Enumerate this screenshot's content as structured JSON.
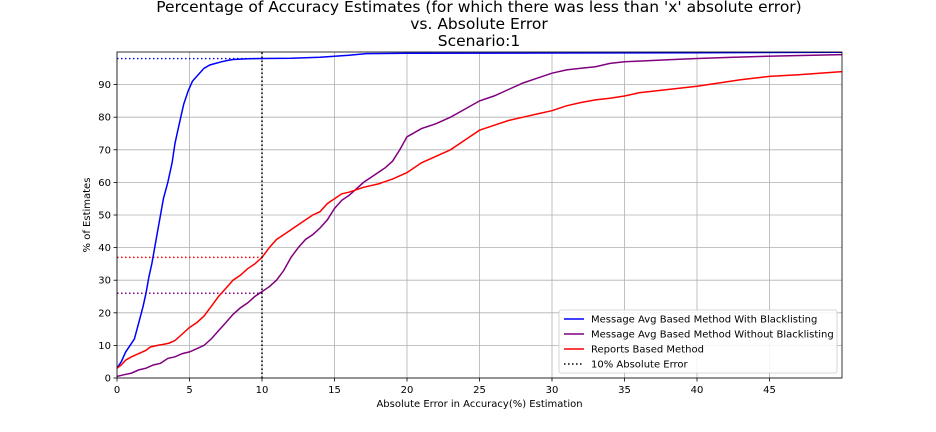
{
  "chart_data": {
    "type": "line",
    "title_lines": [
      "Percentage of Accuracy Estimates (for which there was less than 'x' absolute error)",
      "vs. Absolute Error",
      "Scenario:1"
    ],
    "xlabel": "Absolute Error in Accuracy(%) Estimation",
    "ylabel": "% of Estimates",
    "xlim": [
      0,
      50
    ],
    "ylim": [
      0,
      100
    ],
    "xticks": [
      0,
      5,
      10,
      15,
      20,
      25,
      30,
      35,
      40,
      45
    ],
    "yticks": [
      0,
      10,
      20,
      30,
      40,
      50,
      60,
      70,
      80,
      90
    ],
    "grid": true,
    "legend_position": "lower-right",
    "series": [
      {
        "name": "Message Avg Based Method With Blacklisting",
        "color": "#0000ff",
        "style": "solid",
        "x": [
          0,
          0.3,
          0.6,
          0.9,
          1.2,
          1.5,
          1.8,
          2.0,
          2.2,
          2.4,
          2.6,
          2.8,
          3.0,
          3.2,
          3.5,
          3.8,
          4.0,
          4.3,
          4.6,
          4.9,
          5.2,
          5.6,
          6.0,
          6.4,
          6.8,
          7.2,
          7.6,
          8.0,
          9.0,
          10.0,
          12.0,
          14.0,
          16.0,
          17.2,
          20,
          30,
          40,
          50
        ],
        "y": [
          3,
          5,
          8,
          10,
          12,
          17,
          22,
          26,
          31,
          35,
          40,
          45,
          50,
          55,
          60,
          66,
          72,
          78,
          84,
          88,
          91,
          93,
          95,
          96,
          96.5,
          97,
          97.4,
          97.7,
          97.9,
          98,
          98.1,
          98.4,
          99,
          99.5,
          99.6,
          99.7,
          99.8,
          99.9
        ]
      },
      {
        "name": "Message Avg Based Method Without Blacklisting",
        "color": "#800080",
        "style": "solid",
        "x": [
          0,
          0.5,
          1.0,
          1.5,
          2.0,
          2.5,
          3.0,
          3.5,
          4.0,
          4.5,
          5.0,
          5.5,
          6.0,
          6.5,
          7.0,
          7.5,
          8.0,
          8.5,
          9.0,
          9.5,
          10.0,
          10.5,
          11.0,
          11.5,
          12.0,
          12.5,
          13.0,
          13.5,
          14.0,
          14.5,
          15.0,
          15.5,
          16.0,
          16.5,
          17.0,
          17.5,
          18.0,
          18.5,
          19.0,
          19.5,
          20.0,
          21.0,
          22.0,
          23.0,
          24.0,
          25.0,
          26.0,
          27.0,
          28.0,
          29.0,
          30.0,
          31.0,
          32.0,
          33.0,
          34.0,
          35.0,
          36.0,
          38.0,
          40.0,
          42.0,
          44.0,
          46.0,
          48.0,
          50.0
        ],
        "y": [
          0.5,
          1,
          1.5,
          2.5,
          3,
          4,
          4.5,
          6,
          6.5,
          7.5,
          8,
          9,
          10,
          12,
          14.5,
          17,
          19.5,
          21.5,
          23,
          25,
          26.5,
          28,
          30,
          33,
          37,
          40,
          42.5,
          44,
          46,
          48.5,
          52,
          54.5,
          56,
          58,
          60,
          61.5,
          63,
          64.5,
          66.5,
          70,
          74,
          76.5,
          78,
          80,
          82.5,
          85,
          86.5,
          88.5,
          90.5,
          92,
          93.5,
          94.5,
          95,
          95.5,
          96.5,
          97,
          97.2,
          97.6,
          98,
          98.3,
          98.6,
          98.8,
          99,
          99.2
        ]
      },
      {
        "name": "Reports Based Method",
        "color": "#ff0000",
        "style": "solid",
        "x": [
          0,
          0.3,
          0.6,
          1.0,
          1.5,
          2.0,
          2.3,
          2.8,
          3.2,
          3.6,
          4.0,
          4.5,
          5.0,
          5.5,
          6.0,
          6.5,
          7.0,
          7.5,
          8.0,
          8.5,
          9.0,
          9.5,
          10.0,
          10.5,
          11.0,
          11.5,
          12.0,
          12.5,
          13.0,
          13.5,
          14.0,
          14.5,
          15.0,
          15.5,
          16.0,
          17.0,
          18.0,
          19.0,
          20.0,
          21.0,
          22.0,
          23.0,
          24.0,
          25.0,
          26.0,
          27.0,
          28.0,
          29.0,
          30.0,
          31.0,
          32.0,
          33.0,
          34.0,
          35.0,
          36.0,
          38.0,
          40.0,
          41.5,
          43.0,
          45.0,
          47.0,
          50.0
        ],
        "y": [
          3,
          4,
          5.5,
          6.5,
          7.5,
          8.5,
          9.5,
          10,
          10.3,
          10.7,
          11.5,
          13.5,
          15.5,
          17,
          19,
          22,
          25,
          27.5,
          30,
          31.5,
          33.5,
          35,
          37,
          40,
          42.5,
          44,
          45.5,
          47,
          48.5,
          50,
          51,
          53.5,
          55,
          56.5,
          57,
          58.5,
          59.5,
          61,
          63,
          66,
          68,
          70,
          73,
          76,
          77.5,
          79,
          80,
          81,
          82,
          83.5,
          84.5,
          85.3,
          85.8,
          86.5,
          87.5,
          88.5,
          89.5,
          90.5,
          91.5,
          92.5,
          93,
          94
        ]
      },
      {
        "name": "10% Absolute Error",
        "color": "#000000",
        "style": "dotted",
        "x": [
          10,
          10
        ],
        "y": [
          0,
          100
        ]
      }
    ],
    "reference_lines": [
      {
        "color": "#0000ff",
        "y": 98,
        "x": [
          0,
          10
        ]
      },
      {
        "color": "#ff0000",
        "y": 37,
        "x": [
          0,
          10
        ]
      },
      {
        "color": "#800080",
        "y": 26,
        "x": [
          0,
          10
        ]
      }
    ]
  }
}
